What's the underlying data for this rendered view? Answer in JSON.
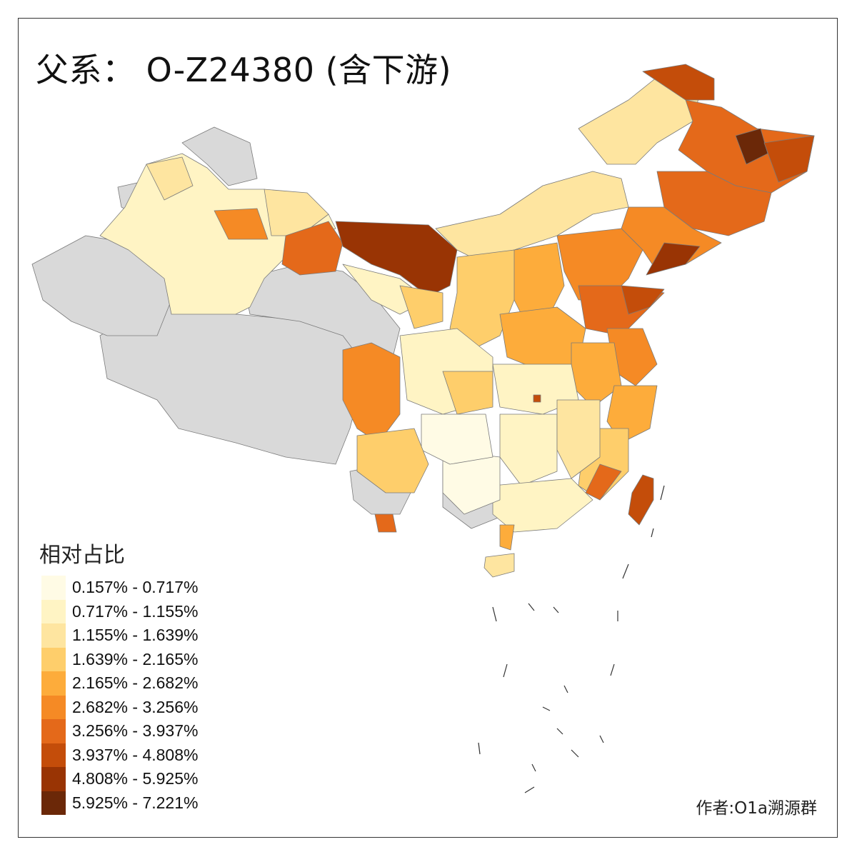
{
  "title": "父系： O-Z24380 (含下游)",
  "legend": {
    "title": "相对占比",
    "classes": [
      {
        "label": "0.157% - 0.717%",
        "color": "#fffbe5"
      },
      {
        "label": "0.717% - 1.155%",
        "color": "#fff4c4"
      },
      {
        "label": "1.155% - 1.639%",
        "color": "#fee5a0"
      },
      {
        "label": "1.639% - 2.165%",
        "color": "#fece6b"
      },
      {
        "label": "2.165% - 2.682%",
        "color": "#fdac3b"
      },
      {
        "label": "2.682% - 3.256%",
        "color": "#f58a25"
      },
      {
        "label": "3.256% - 3.937%",
        "color": "#e4691a"
      },
      {
        "label": "3.937% - 4.808%",
        "color": "#c44d0a"
      },
      {
        "label": "4.808% - 5.925%",
        "color": "#993404"
      },
      {
        "label": "5.925% - 7.221%",
        "color": "#6b2808"
      }
    ]
  },
  "no_data_color": "#d9d9d9",
  "credit": "作者:O1a溯源群"
}
